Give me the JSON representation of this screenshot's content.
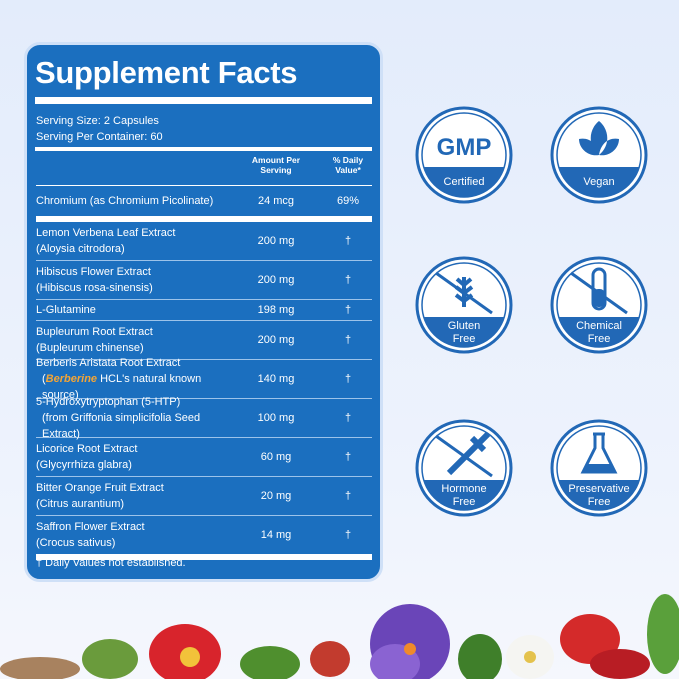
{
  "title": "Supplement Facts",
  "serving": [
    "Serving Size: 2 Capsules",
    "Serving Per Container: 60"
  ],
  "table": {
    "header": [
      [
        "Amount Per",
        "Serving"
      ],
      [
        "% Daily",
        "Value*"
      ]
    ],
    "rows": [
      {
        "lines": [
          "Chromium (as Chromium Picolinate)"
        ],
        "amount": "24 mcg",
        "dv": "69%"
      },
      {
        "lines": [
          "Lemon Verbena Leaf Extract",
          "(Aloysia citrodora)"
        ],
        "amount": "200 mg",
        "dv": "†"
      },
      {
        "lines": [
          "Hibiscus Flower Extract",
          "(Hibiscus rosa-sinensis)"
        ],
        "amount": "200 mg",
        "dv": "†"
      },
      {
        "lines": [
          "L-Glutamine"
        ],
        "amount": "198 mg",
        "dv": "†"
      },
      {
        "lines": [
          "Bupleurum Root Extract",
          "(Bupleurum chinense)"
        ],
        "amount": "200 mg",
        "dv": "†"
      },
      {
        "lines": [
          "Berberis Aristata Root Extract",
          [
            "(",
            "Berberine",
            " HCL's natural known source)"
          ]
        ],
        "amount": "140 mg",
        "dv": "†"
      },
      {
        "lines": [
          "5-Hydroxytryptophan (5-HTP)",
          "(from Griffonia simplicifolia Seed Extract)"
        ],
        "amount": "100 mg",
        "dv": "†"
      },
      {
        "lines": [
          "Licorice Root Extract",
          "(Glycyrrhiza glabra)"
        ],
        "amount": "60 mg",
        "dv": "†"
      },
      {
        "lines": [
          "Bitter Orange Fruit Extract",
          "(Citrus aurantium)"
        ],
        "amount": "20 mg",
        "dv": "†"
      },
      {
        "lines": [
          "Saffron Flower Extract",
          "(Crocus sativus)"
        ],
        "amount": "14 mg",
        "dv": "†"
      }
    ]
  },
  "footnote": "† Daily Values not established.",
  "badges": [
    {
      "icon_text": "GMP",
      "label": [
        "Certified"
      ]
    },
    {
      "label": [
        "Vegan"
      ]
    },
    {
      "label": [
        "Gluten",
        "Free"
      ]
    },
    {
      "label": [
        "Chemical",
        "Free"
      ]
    },
    {
      "label": [
        "Hormone",
        "Free"
      ]
    },
    {
      "label": [
        "Preservative",
        "Free"
      ]
    }
  ]
}
